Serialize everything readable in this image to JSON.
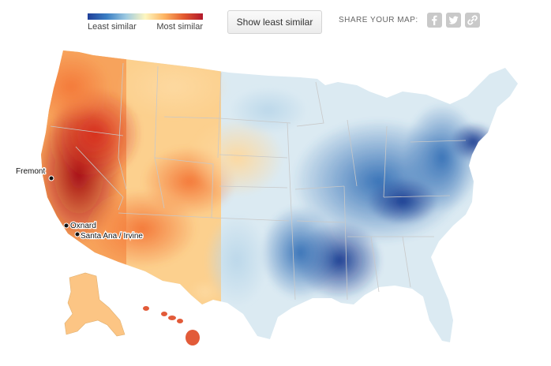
{
  "legend": {
    "low_label": "Least similar",
    "high_label": "Most similar",
    "colors": [
      "#1f3f99",
      "#3b7fc4",
      "#9ecae1",
      "#fdf6c0",
      "#fdb462",
      "#e35a2f",
      "#b2182b"
    ]
  },
  "toolbar": {
    "toggle_label": "Show least similar",
    "share_label": "SHARE YOUR MAP:"
  },
  "share_icons": [
    "facebook-icon",
    "twitter-icon",
    "link-icon"
  ],
  "cities": [
    {
      "name": "Fremont"
    },
    {
      "name": "Oxnard"
    },
    {
      "name": "Santa Ana / Irvine"
    }
  ]
}
